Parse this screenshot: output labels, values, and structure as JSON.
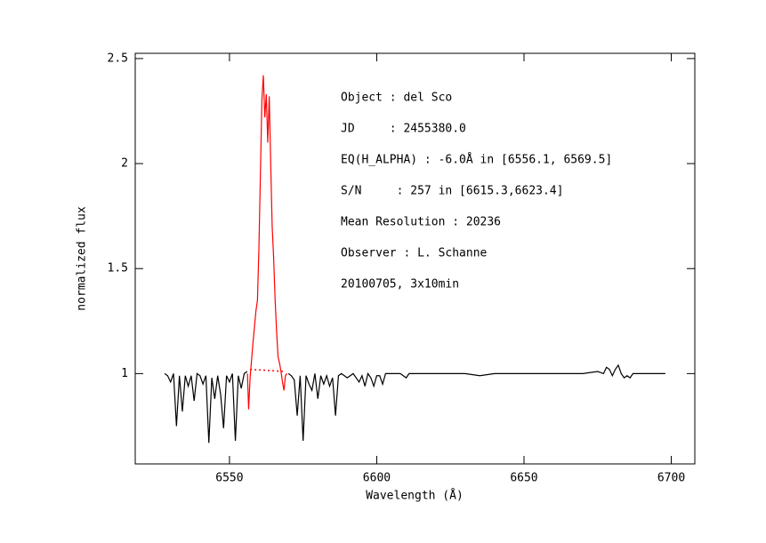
{
  "chart_data": {
    "type": "line",
    "xlabel": "Wavelength (Å)",
    "ylabel": "normalized flux",
    "annotations": [
      "Object : del Sco",
      "JD     : 2455380.0",
      "EQ(H_ALPHA) : -6.0Å in [6556.1, 6569.5]",
      "S/N     : 257 in [6615.3,6623.4]",
      "Mean Resolution : 20236",
      "Observer : L. Schanne",
      "20100705, 3x10min"
    ],
    "xlim": [
      6518,
      6708
    ],
    "xticks": [
      6550,
      6600,
      6650,
      6700
    ],
    "ylim": [
      0.57,
      2.525
    ],
    "yticks": [
      1,
      1.5,
      2,
      2.5
    ],
    "grid": false,
    "series": [
      {
        "color": "#000000",
        "dashed": false,
        "x": [
          6528,
          6529,
          6530,
          6531,
          6532,
          6533,
          6534,
          6535,
          6536,
          6537,
          6538,
          6539,
          6540,
          6541,
          6542,
          6543,
          6544,
          6545,
          6546,
          6547,
          6548,
          6549,
          6550,
          6551,
          6552,
          6553,
          6554,
          6555,
          6556,
          null,
          6570,
          6571,
          6572,
          6573,
          6574,
          6575,
          6576,
          6577,
          6578,
          6579,
          6580,
          6581,
          6582,
          6583,
          6584,
          6585,
          6586,
          6587,
          6588,
          6590,
          6592,
          6594,
          6595,
          6596,
          6597,
          6598,
          6599,
          6600,
          6601,
          6602,
          6603,
          6605,
          6608,
          6610,
          6611,
          6615,
          6620,
          6625,
          6630,
          6635,
          6640,
          6645,
          6650,
          6655,
          6660,
          6665,
          6670,
          6675,
          6677,
          6678,
          6679,
          6680,
          6681,
          6682,
          6683,
          6684,
          6685,
          6686,
          6687,
          6690,
          6695,
          6698
        ],
        "values": [
          1.0,
          0.99,
          0.96,
          1.0,
          0.75,
          0.99,
          0.82,
          0.99,
          0.94,
          0.99,
          0.87,
          1.0,
          0.99,
          0.95,
          0.99,
          0.67,
          0.98,
          0.88,
          0.99,
          0.9,
          0.74,
          0.99,
          0.96,
          1.0,
          0.68,
          0.99,
          0.93,
          1.0,
          1.01,
          null,
          1.0,
          0.99,
          0.97,
          0.8,
          0.99,
          0.68,
          0.99,
          0.95,
          0.92,
          1.0,
          0.88,
          0.99,
          0.95,
          0.99,
          0.94,
          0.98,
          0.8,
          0.99,
          1.0,
          0.98,
          1.0,
          0.96,
          0.99,
          0.94,
          1.0,
          0.98,
          0.94,
          0.99,
          0.99,
          0.95,
          1.0,
          1.0,
          1.0,
          0.98,
          1.0,
          1.0,
          1.0,
          1.0,
          1.0,
          0.99,
          1.0,
          1.0,
          1.0,
          1.0,
          1.0,
          1.0,
          1.0,
          1.01,
          1.0,
          1.03,
          1.02,
          0.99,
          1.02,
          1.04,
          1.0,
          0.98,
          0.99,
          0.98,
          1.0,
          1.0,
          1.0,
          1.0
        ]
      },
      {
        "color": "#ff0000",
        "dashed": false,
        "x": [
          6556.1,
          6556.5,
          6557,
          6558,
          6559,
          6559.5,
          6560,
          6560.5,
          6561,
          6561.5,
          6562,
          6562.5,
          6563,
          6563.5,
          6564,
          6564.5,
          6565,
          6565.5,
          6566,
          6566.5,
          6567,
          6567.5,
          6568,
          6568.5,
          6569,
          6569.5
        ],
        "values": [
          1.0,
          0.83,
          0.98,
          1.15,
          1.3,
          1.35,
          1.6,
          1.95,
          2.3,
          2.42,
          2.22,
          2.33,
          2.1,
          2.32,
          2.0,
          1.7,
          1.55,
          1.35,
          1.2,
          1.08,
          1.05,
          1.01,
          0.96,
          0.92,
          0.99,
          1.0
        ]
      },
      {
        "color": "#ff0000",
        "dashed": true,
        "x": [
          6557,
          6569
        ],
        "values": [
          1.02,
          1.01
        ]
      }
    ]
  }
}
